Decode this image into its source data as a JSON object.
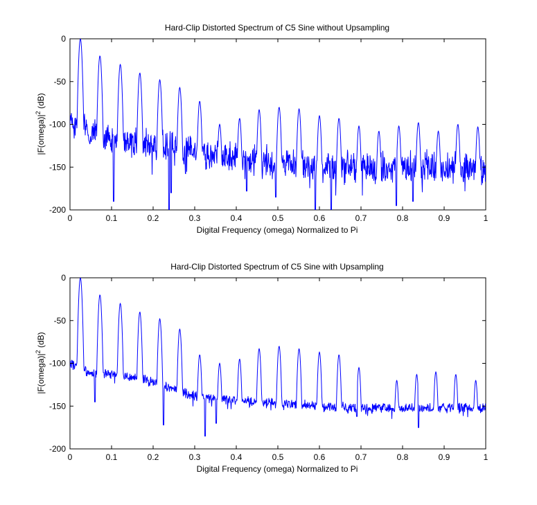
{
  "chart_data": [
    {
      "type": "line",
      "title": "Hard-Clip Distorted Spectrum of C5 Sine without Upsampling",
      "xlabel": "Digital Frequency (omega) Normalized to Pi",
      "ylabel_main": "|F(omega)|",
      "ylabel_sup": "2",
      "ylabel_unit": " (dB)",
      "xlim": [
        0,
        1
      ],
      "ylim": [
        -200,
        0
      ],
      "xticks": [
        "0",
        "0.1",
        "0.2",
        "0.3",
        "0.4",
        "0.5",
        "0.6",
        "0.7",
        "0.8",
        "0.9",
        "1"
      ],
      "yticks": [
        "-200",
        "-150",
        "-100",
        "-50",
        "0"
      ],
      "line_color": "#0000ff",
      "peaks": [
        {
          "x": 0.025,
          "y": 0
        },
        {
          "x": 0.072,
          "y": -20
        },
        {
          "x": 0.121,
          "y": -30
        },
        {
          "x": 0.168,
          "y": -40
        },
        {
          "x": 0.216,
          "y": -48
        },
        {
          "x": 0.264,
          "y": -57
        },
        {
          "x": 0.312,
          "y": -73
        },
        {
          "x": 0.36,
          "y": -100
        },
        {
          "x": 0.408,
          "y": -93
        },
        {
          "x": 0.455,
          "y": -83
        },
        {
          "x": 0.503,
          "y": -80
        },
        {
          "x": 0.551,
          "y": -82
        },
        {
          "x": 0.6,
          "y": -90
        },
        {
          "x": 0.647,
          "y": -93
        },
        {
          "x": 0.695,
          "y": -102
        },
        {
          "x": 0.743,
          "y": -108
        },
        {
          "x": 0.791,
          "y": -102
        },
        {
          "x": 0.838,
          "y": -98
        },
        {
          "x": 0.886,
          "y": -108
        },
        {
          "x": 0.933,
          "y": -100
        },
        {
          "x": 0.981,
          "y": -103
        }
      ],
      "floor": [
        {
          "x": 0.0,
          "y": -95
        },
        {
          "x": 0.05,
          "y": -110
        },
        {
          "x": 0.1,
          "y": -120
        },
        {
          "x": 0.2,
          "y": -125
        },
        {
          "x": 0.3,
          "y": -130
        },
        {
          "x": 0.4,
          "y": -140
        },
        {
          "x": 0.5,
          "y": -145
        },
        {
          "x": 0.6,
          "y": -150
        },
        {
          "x": 0.7,
          "y": -150
        },
        {
          "x": 0.8,
          "y": -150
        },
        {
          "x": 0.9,
          "y": -150
        },
        {
          "x": 1.0,
          "y": -155
        }
      ],
      "noise_spread": 22,
      "deep_dips": [
        {
          "x": 0.105,
          "y": -190
        },
        {
          "x": 0.238,
          "y": -200
        },
        {
          "x": 0.243,
          "y": -180
        },
        {
          "x": 0.425,
          "y": -178
        },
        {
          "x": 0.495,
          "y": -185
        },
        {
          "x": 0.59,
          "y": -200
        },
        {
          "x": 0.628,
          "y": -200
        },
        {
          "x": 0.785,
          "y": -195
        },
        {
          "x": 0.825,
          "y": -190
        }
      ]
    },
    {
      "type": "line",
      "title": "Hard-Clip Distorted Spectrum of C5 Sine with Upsampling",
      "xlabel": "Digital Frequency (omega) Normalized to Pi",
      "ylabel_main": "|F(omega)|",
      "ylabel_sup": "2",
      "ylabel_unit": " (dB)",
      "xlim": [
        0,
        1
      ],
      "ylim": [
        -200,
        0
      ],
      "xticks": [
        "0",
        "0.1",
        "0.2",
        "0.3",
        "0.4",
        "0.5",
        "0.6",
        "0.7",
        "0.8",
        "0.9",
        "1"
      ],
      "yticks": [
        "-200",
        "-150",
        "-100",
        "-50",
        "0"
      ],
      "line_color": "#0000ff",
      "peaks": [
        {
          "x": 0.025,
          "y": 0
        },
        {
          "x": 0.072,
          "y": -20
        },
        {
          "x": 0.121,
          "y": -30
        },
        {
          "x": 0.168,
          "y": -40
        },
        {
          "x": 0.216,
          "y": -48
        },
        {
          "x": 0.264,
          "y": -60
        },
        {
          "x": 0.312,
          "y": -90
        },
        {
          "x": 0.36,
          "y": -100
        },
        {
          "x": 0.408,
          "y": -95
        },
        {
          "x": 0.455,
          "y": -83
        },
        {
          "x": 0.503,
          "y": -80
        },
        {
          "x": 0.551,
          "y": -83
        },
        {
          "x": 0.6,
          "y": -87
        },
        {
          "x": 0.647,
          "y": -90
        },
        {
          "x": 0.695,
          "y": -105
        },
        {
          "x": 0.743,
          "y": -150
        },
        {
          "x": 0.786,
          "y": -120
        },
        {
          "x": 0.834,
          "y": -113
        },
        {
          "x": 0.88,
          "y": -110
        },
        {
          "x": 0.928,
          "y": -113
        },
        {
          "x": 0.976,
          "y": -120
        }
      ],
      "floor": [
        {
          "x": 0.0,
          "y": -100
        },
        {
          "x": 0.05,
          "y": -112
        },
        {
          "x": 0.1,
          "y": -112
        },
        {
          "x": 0.2,
          "y": -122
        },
        {
          "x": 0.3,
          "y": -138
        },
        {
          "x": 0.4,
          "y": -143
        },
        {
          "x": 0.5,
          "y": -147
        },
        {
          "x": 0.6,
          "y": -150
        },
        {
          "x": 0.7,
          "y": -152
        },
        {
          "x": 0.8,
          "y": -153
        },
        {
          "x": 0.9,
          "y": -152
        },
        {
          "x": 1.0,
          "y": -152
        }
      ],
      "noise_spread": 7,
      "deep_dips": [
        {
          "x": 0.06,
          "y": -145
        },
        {
          "x": 0.225,
          "y": -172
        },
        {
          "x": 0.325,
          "y": -185
        },
        {
          "x": 0.352,
          "y": -170
        },
        {
          "x": 0.838,
          "y": -175
        },
        {
          "x": 0.69,
          "y": -162
        }
      ]
    }
  ]
}
